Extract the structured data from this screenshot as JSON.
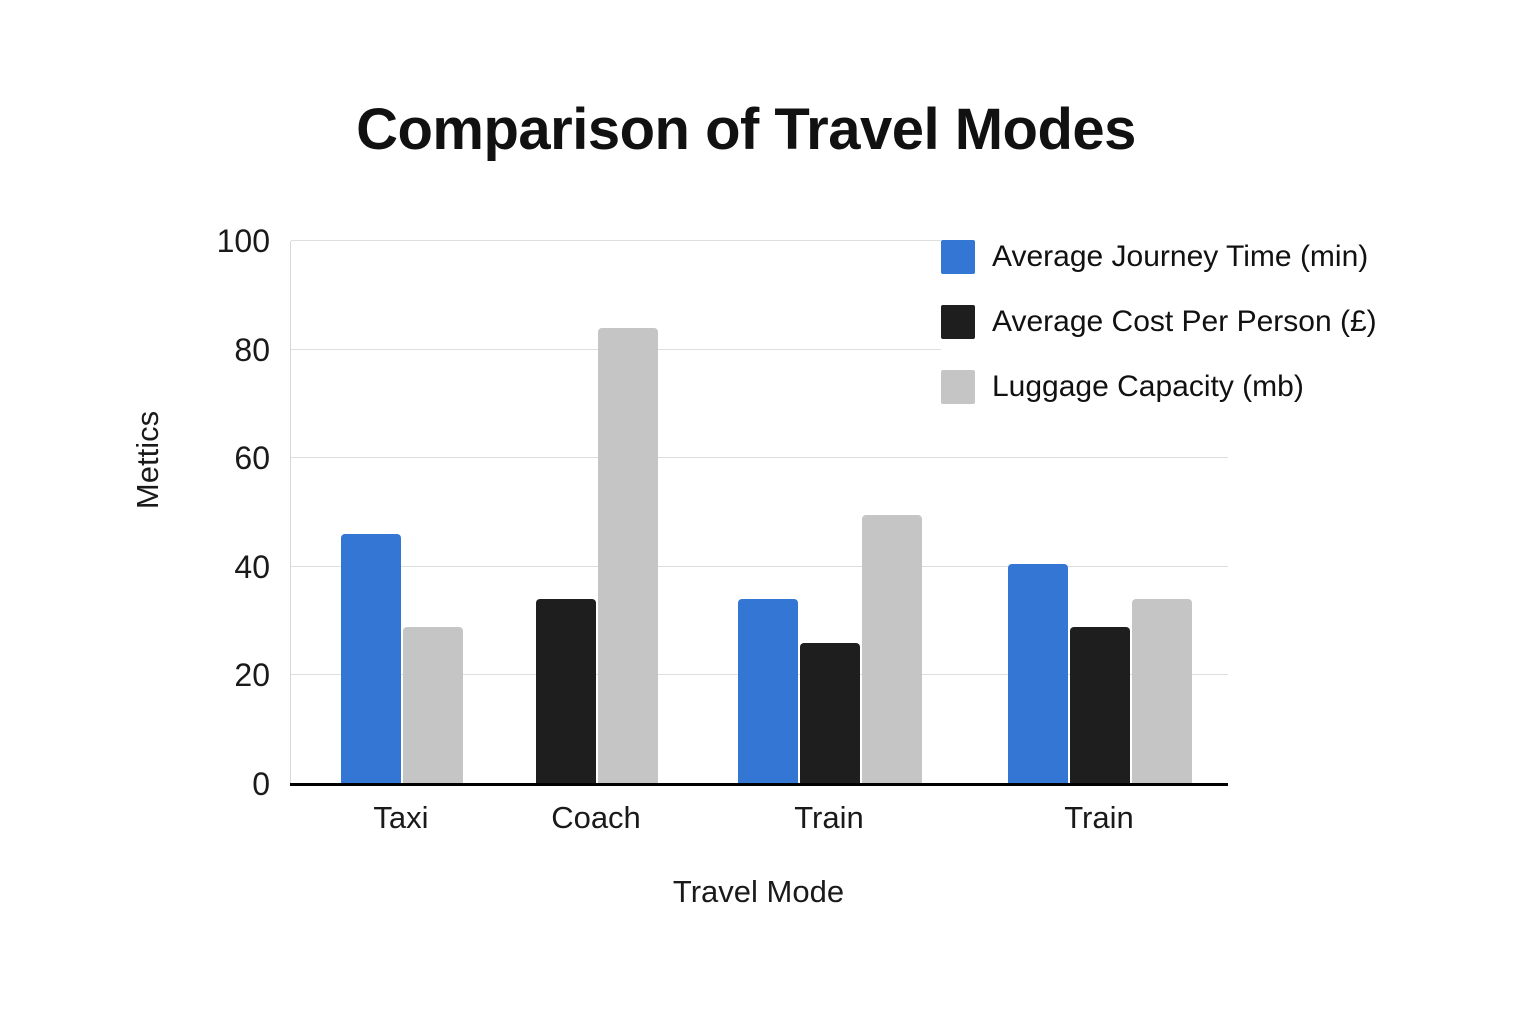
{
  "title": "Comparison of Travel Modes",
  "colors": {
    "series_blue": "#3376d3",
    "series_black": "#1e1e1e",
    "series_gray": "#c5c5c5",
    "gridline": "#dedede",
    "axis_line": "#000000",
    "text": "#111111"
  },
  "chart_data": {
    "type": "bar",
    "title": "Comparison of Travel Modes",
    "xlabel": "Travel Mode",
    "ylabel": "Mettics",
    "categories": [
      "Taxi",
      "Coach",
      "Train",
      "Train"
    ],
    "series": [
      {
        "name": "Average Journey Time (min)",
        "color": "#3376d3",
        "values": [
          46,
          null,
          34,
          40.5
        ]
      },
      {
        "name": "Average Cost Per Person (£)",
        "color": "#1e1e1e",
        "values": [
          null,
          34,
          26,
          29
        ]
      },
      {
        "name": "Luggage Capacity (mb)",
        "color": "#c5c5c5",
        "values": [
          29,
          84,
          49.5,
          34
        ]
      }
    ],
    "ylim": [
      0,
      100
    ],
    "yticks": [
      0,
      20,
      40,
      60,
      80,
      100
    ],
    "grid": true,
    "legend_position": "top-right"
  }
}
